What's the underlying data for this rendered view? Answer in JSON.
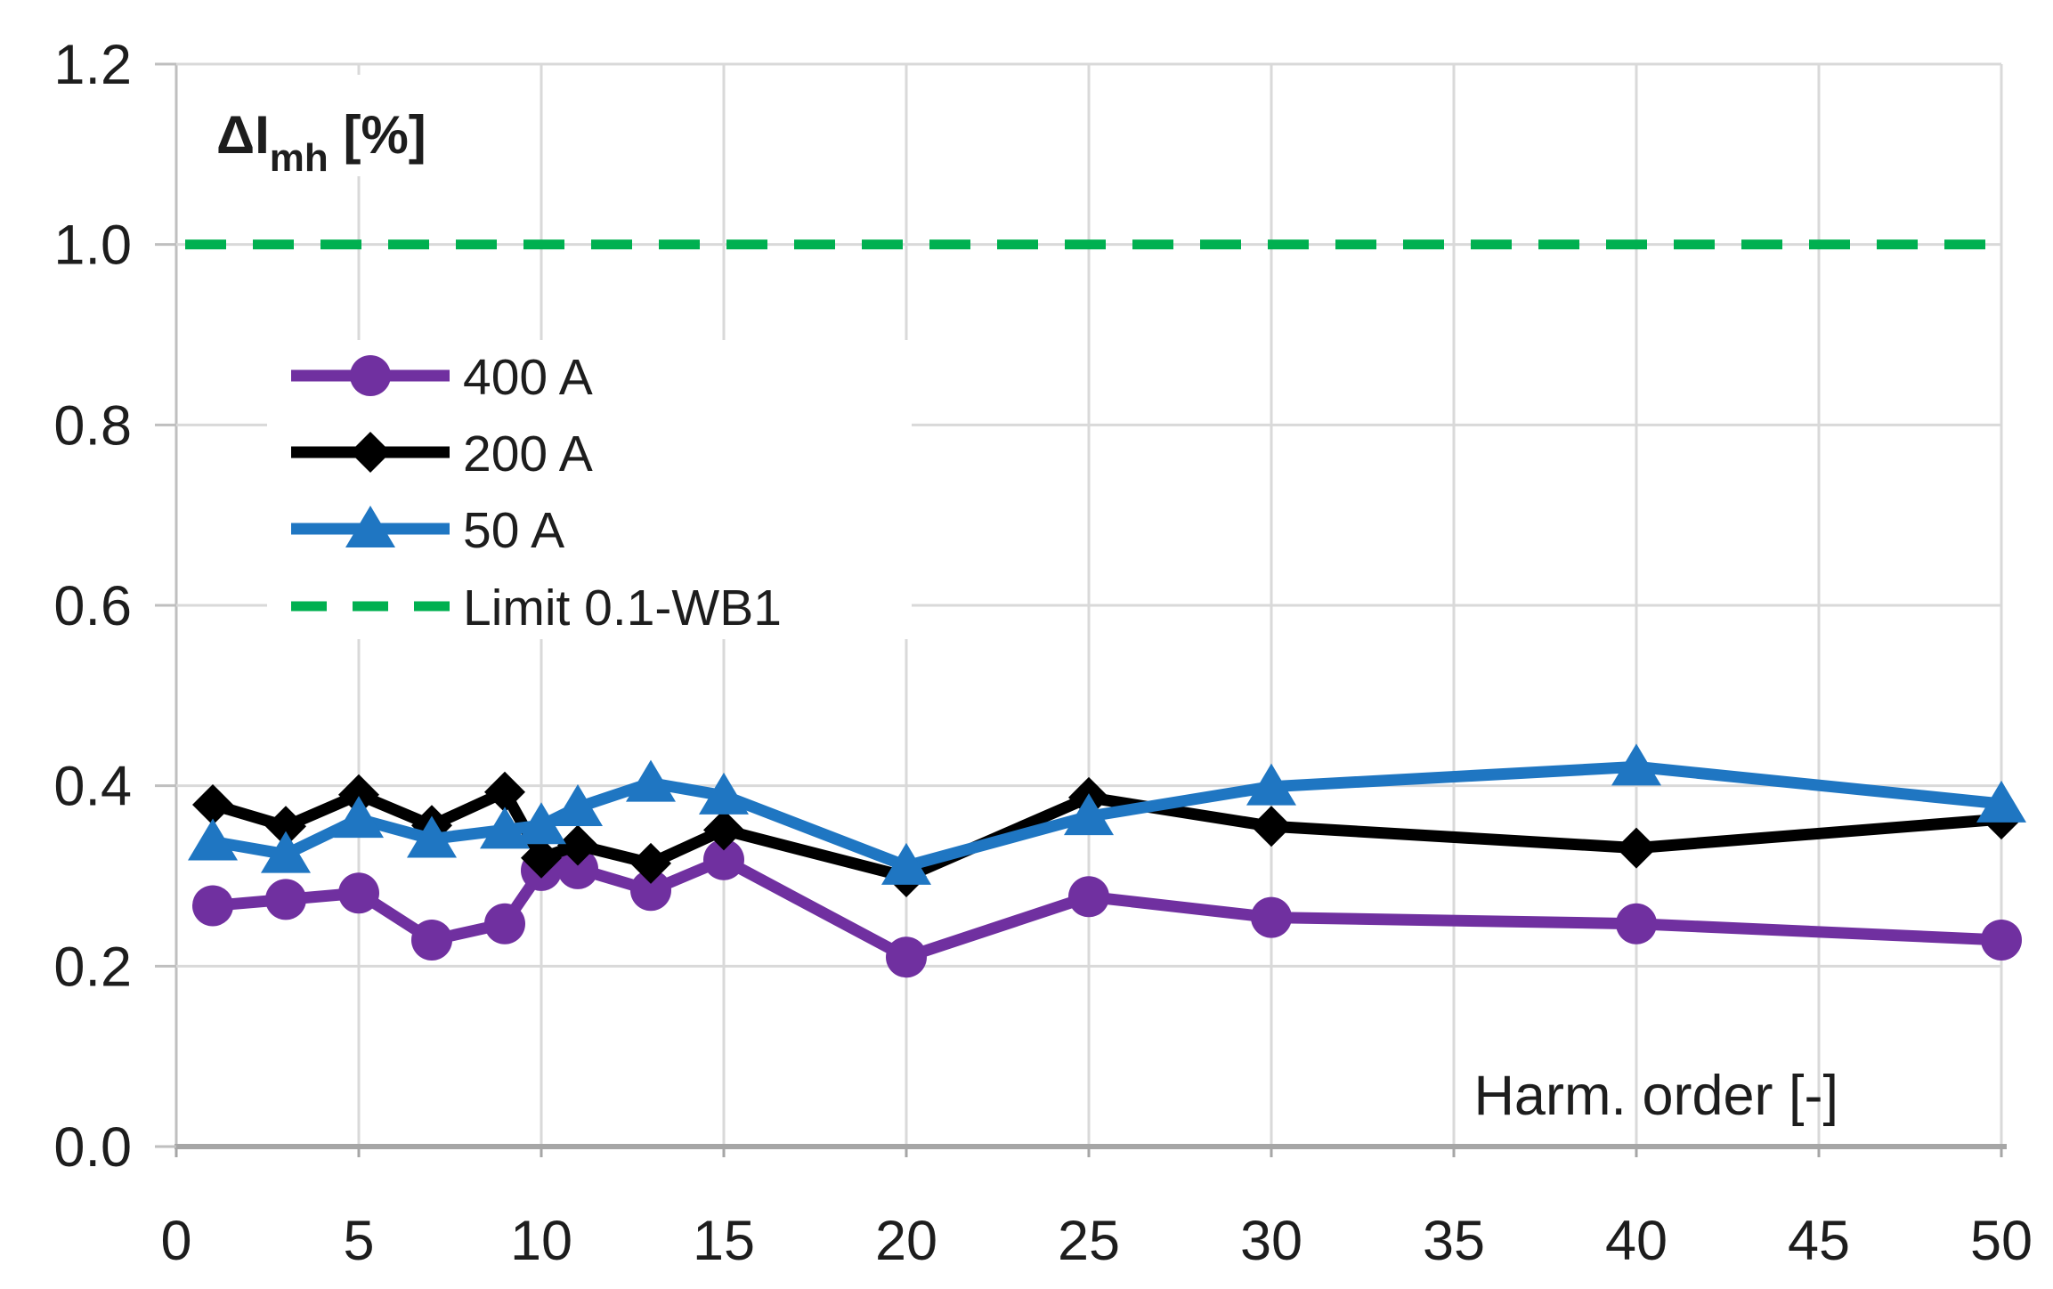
{
  "page": {
    "background": "#FFFFFF"
  },
  "chart_data": {
    "type": "line",
    "title": {
      "main": "ΔI",
      "sub": "mh",
      "suffix": " [%]"
    },
    "xlabel": "Harm. order [-]",
    "ylabel": "ΔImh [%]",
    "x": [
      1,
      3,
      5,
      7,
      9,
      10,
      11,
      13,
      15,
      20,
      25,
      30,
      40,
      50
    ],
    "series": [
      {
        "name": "400 A",
        "color": "#7030A0",
        "marker": "circle",
        "values": [
          0.267,
          0.274,
          0.281,
          0.229,
          0.247,
          0.306,
          0.308,
          0.284,
          0.318,
          0.21,
          0.277,
          0.254,
          0.247,
          0.229
        ]
      },
      {
        "name": "200 A",
        "color": "#000000",
        "marker": "diamond",
        "values": [
          0.379,
          0.355,
          0.39,
          0.356,
          0.393,
          0.32,
          0.334,
          0.314,
          0.351,
          0.299,
          0.387,
          0.355,
          0.331,
          0.363
        ]
      },
      {
        "name": "50 A",
        "color": "#1F76C2",
        "marker": "triangle",
        "values": [
          0.338,
          0.324,
          0.363,
          0.341,
          0.351,
          0.356,
          0.376,
          0.403,
          0.389,
          0.311,
          0.366,
          0.399,
          0.421,
          0.38
        ]
      }
    ],
    "limit": {
      "name": "Limit 0.1-WB1",
      "color": "#00B050",
      "value": 1.0,
      "style": "dashed"
    },
    "axis": {
      "x": {
        "min": 0,
        "max": 50,
        "ticks": [
          0,
          5,
          10,
          15,
          20,
          25,
          30,
          35,
          40,
          45,
          50
        ]
      },
      "y": {
        "min": 0.0,
        "max": 1.2,
        "ticks": [
          "0.0",
          "0.2",
          "0.4",
          "0.6",
          "0.8",
          "1.0",
          "1.2"
        ]
      }
    },
    "legend": {
      "position": "upper-left-inside",
      "entries": [
        "400 A",
        "200 A",
        "50 A",
        "Limit 0.1-WB1"
      ]
    },
    "grid": true,
    "style_colors": {
      "gridline": "#D9D9D9",
      "axis_line": "#A6A6A6",
      "tick": "#BFBFBF",
      "text": "#1D1D1D"
    }
  }
}
